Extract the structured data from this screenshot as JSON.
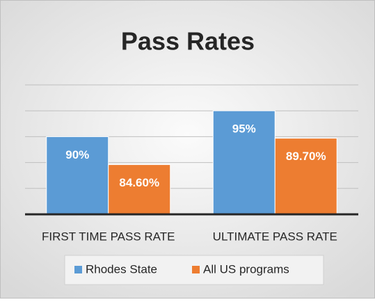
{
  "chart_data": {
    "type": "bar",
    "title": "Pass Rates",
    "categories": [
      "FIRST TIME PASS RATE",
      "ULTIMATE PASS RATE"
    ],
    "series": [
      {
        "name": "Rhodes State",
        "color": "#5b9bd5",
        "values": [
          90,
          95
        ],
        "value_labels": [
          "90%",
          "95%"
        ]
      },
      {
        "name": "All US programs",
        "color": "#ed7d31",
        "values": [
          84.6,
          89.7
        ],
        "value_labels": [
          "84.60%",
          "89.70%"
        ]
      }
    ],
    "ylim": [
      75,
      100
    ],
    "yticks": [
      75,
      80,
      85,
      90,
      95,
      100
    ],
    "grid": true,
    "legend": "bottom"
  }
}
